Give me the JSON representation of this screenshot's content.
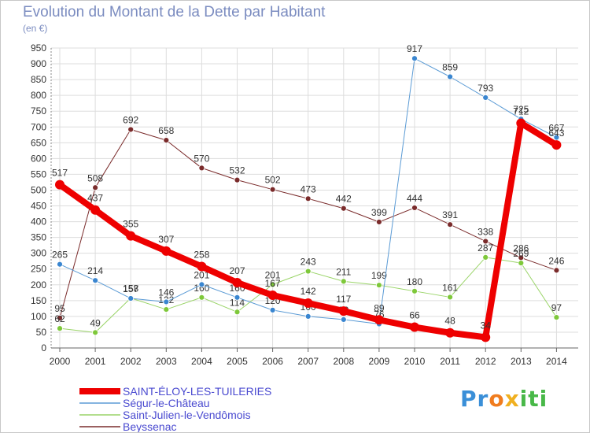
{
  "title": "Evolution du Montant de la Dette par Habitant",
  "unit": "(en €)",
  "logo": {
    "text": "Proxiti",
    "colors": [
      "#3a8fd8",
      "#f07c1e",
      "#f0b020",
      "#48b848"
    ]
  },
  "chart_data": {
    "type": "line",
    "title": "Evolution du Montant de la Dette par Habitant",
    "ylabel": "(en €)",
    "ylim": [
      0,
      950
    ],
    "yticks": [
      0,
      50,
      100,
      150,
      200,
      250,
      300,
      350,
      400,
      450,
      500,
      550,
      600,
      650,
      700,
      750,
      800,
      850,
      900,
      950
    ],
    "x": [
      "2000",
      "2001",
      "2002",
      "2003",
      "2004",
      "2005",
      "2006",
      "2007",
      "2008",
      "2009",
      "2010",
      "2011",
      "2012",
      "2013",
      "2014"
    ],
    "grid": true,
    "legend_position": "bottom-left",
    "series": [
      {
        "name": "Beyssenac",
        "color": "#7a2b2b",
        "width": 1,
        "values": [
          95,
          508,
          692,
          658,
          570,
          532,
          502,
          473,
          442,
          399,
          444,
          391,
          338,
          286,
          246
        ],
        "labels": [
          "95",
          "508",
          "692",
          "658",
          "570",
          "532",
          "502",
          "473",
          "442",
          "399",
          "444",
          "391",
          "338",
          "286",
          "246"
        ]
      },
      {
        "name": "Saint-Julien-le-Vendômois",
        "color": "#9ad468",
        "marker": "#7ec83a",
        "width": 1,
        "values": [
          62,
          49,
          158,
          122,
          160,
          114,
          201,
          243,
          211,
          199,
          180,
          161,
          287,
          269,
          97
        ],
        "labels": [
          "62",
          "49",
          "158",
          "122",
          "160",
          "114",
          "201",
          "243",
          "211",
          "199",
          "180",
          "161",
          "287",
          "269",
          "97"
        ]
      },
      {
        "name": "Ségur-le-Château",
        "color": "#5b9bd5",
        "marker": "#3a86d0",
        "width": 1,
        "values": [
          265,
          214,
          157,
          146,
          201,
          160,
          120,
          100,
          90,
          76,
          917,
          859,
          793,
          725,
          667
        ],
        "labels": [
          "265",
          "214",
          "157",
          "146",
          "201",
          "160",
          "120",
          "100",
          "90",
          "76",
          "917",
          "859",
          "793",
          "725",
          "667"
        ]
      },
      {
        "name": "SAINT-ÉLOY-LES-TUILERIES",
        "color": "#ee0000",
        "width": 8,
        "values": [
          517,
          437,
          355,
          307,
          258,
          207,
          167,
          142,
          117,
          89,
          66,
          48,
          34,
          712,
          643
        ],
        "labels": [
          "517",
          "437",
          "355",
          "307",
          "258",
          "207",
          "167",
          "142",
          "117",
          "89",
          "66",
          "48",
          "34",
          "712",
          "643"
        ]
      }
    ]
  },
  "legend": [
    {
      "name": "SAINT-ÉLOY-LES-TUILERIES",
      "color": "#ee0000",
      "text_color": "#4a4ad0",
      "thick": true
    },
    {
      "name": "Ségur-le-Château",
      "color": "#5b9bd5",
      "text_color": "#4a4ad0",
      "thick": false
    },
    {
      "name": "Saint-Julien-le-Vendômois",
      "color": "#9ad468",
      "text_color": "#4a4ad0",
      "thick": false
    },
    {
      "name": "Beyssenac",
      "color": "#7a2b2b",
      "text_color": "#4a4ad0",
      "thick": false
    }
  ]
}
